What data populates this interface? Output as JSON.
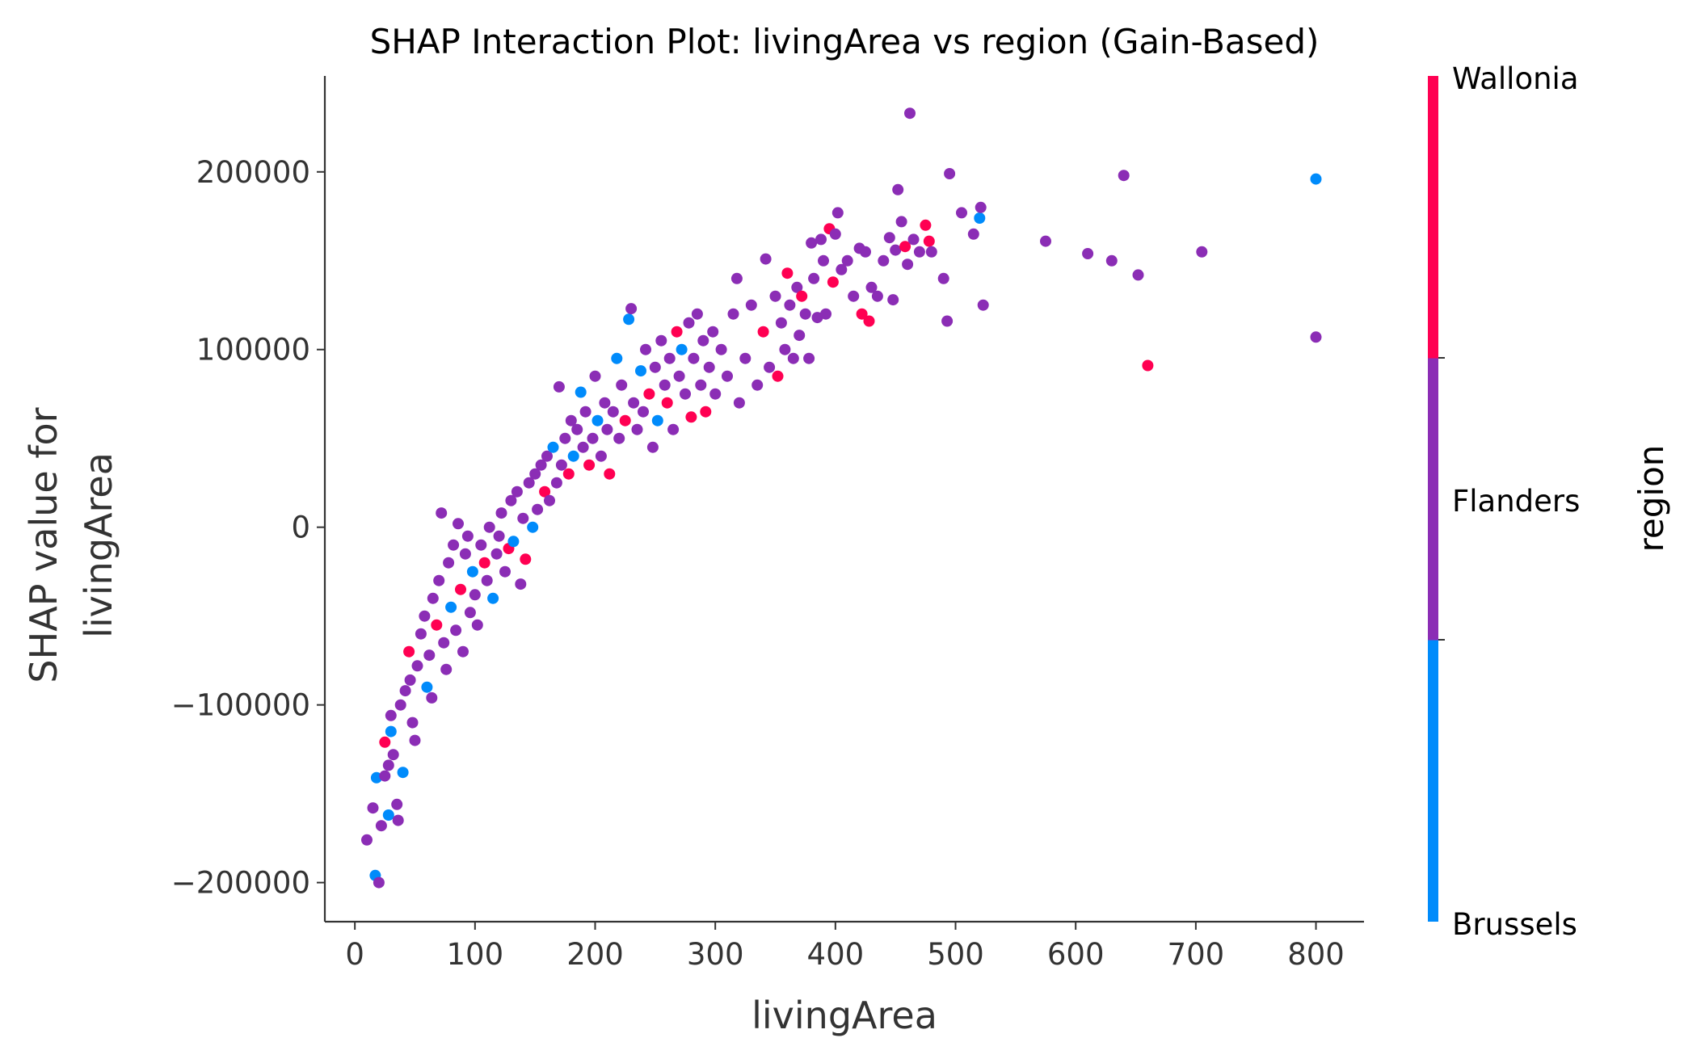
{
  "chart_data": {
    "type": "scatter",
    "title": "SHAP Interaction Plot: livingArea vs region (Gain-Based)",
    "xlabel": "livingArea",
    "ylabel_lines": [
      "SHAP value for",
      "livingArea"
    ],
    "xlim": [
      -25,
      840
    ],
    "ylim": [
      -222000,
      254000
    ],
    "xticks": [
      0,
      100,
      200,
      300,
      400,
      500,
      600,
      700,
      800
    ],
    "yticks": [
      -200000,
      -100000,
      0,
      100000,
      200000
    ],
    "ytick_labels": [
      "−200000",
      "−100000",
      "0",
      "100000",
      "200000"
    ],
    "grid": false,
    "colorbar": {
      "title": "region",
      "labels": [
        "Wallonia",
        "Flanders",
        "Brussels"
      ],
      "colors": [
        "#ff0052",
        "#8b2db5",
        "#008bfb"
      ]
    },
    "series_colors": {
      "Brussels": "#008bfb",
      "Flanders": "#8b2db5",
      "Wallonia": "#ff0052"
    },
    "points": [
      [
        10,
        -176000,
        "Flanders"
      ],
      [
        15,
        -158000,
        "Flanders"
      ],
      [
        17,
        -196000,
        "Brussels"
      ],
      [
        20,
        -200000,
        "Flanders"
      ],
      [
        18,
        -141000,
        "Brussels"
      ],
      [
        22,
        -168000,
        "Flanders"
      ],
      [
        25,
        -140000,
        "Flanders"
      ],
      [
        28,
        -162000,
        "Brussels"
      ],
      [
        25,
        -121000,
        "Wallonia"
      ],
      [
        30,
        -115000,
        "Brussels"
      ],
      [
        32,
        -128000,
        "Flanders"
      ],
      [
        35,
        -156000,
        "Flanders"
      ],
      [
        36,
        -165000,
        "Flanders"
      ],
      [
        30,
        -106000,
        "Flanders"
      ],
      [
        28,
        -134000,
        "Flanders"
      ],
      [
        40,
        -138000,
        "Brussels"
      ],
      [
        38,
        -100000,
        "Flanders"
      ],
      [
        42,
        -92000,
        "Flanders"
      ],
      [
        45,
        -70000,
        "Wallonia"
      ],
      [
        46,
        -86000,
        "Flanders"
      ],
      [
        48,
        -110000,
        "Flanders"
      ],
      [
        50,
        -120000,
        "Flanders"
      ],
      [
        52,
        -78000,
        "Flanders"
      ],
      [
        55,
        -60000,
        "Flanders"
      ],
      [
        58,
        -50000,
        "Flanders"
      ],
      [
        60,
        -90000,
        "Brussels"
      ],
      [
        62,
        -72000,
        "Flanders"
      ],
      [
        64,
        -96000,
        "Flanders"
      ],
      [
        65,
        -40000,
        "Flanders"
      ],
      [
        68,
        -55000,
        "Wallonia"
      ],
      [
        70,
        -30000,
        "Flanders"
      ],
      [
        72,
        8000,
        "Flanders"
      ],
      [
        74,
        -65000,
        "Flanders"
      ],
      [
        76,
        -80000,
        "Flanders"
      ],
      [
        78,
        -20000,
        "Flanders"
      ],
      [
        80,
        -45000,
        "Brussels"
      ],
      [
        82,
        -10000,
        "Flanders"
      ],
      [
        84,
        -58000,
        "Flanders"
      ],
      [
        86,
        2000,
        "Flanders"
      ],
      [
        88,
        -35000,
        "Wallonia"
      ],
      [
        90,
        -70000,
        "Flanders"
      ],
      [
        92,
        -15000,
        "Flanders"
      ],
      [
        94,
        -5000,
        "Flanders"
      ],
      [
        96,
        -48000,
        "Flanders"
      ],
      [
        98,
        -25000,
        "Brussels"
      ],
      [
        100,
        -38000,
        "Flanders"
      ],
      [
        102,
        -55000,
        "Flanders"
      ],
      [
        105,
        -10000,
        "Flanders"
      ],
      [
        108,
        -20000,
        "Wallonia"
      ],
      [
        110,
        -30000,
        "Flanders"
      ],
      [
        112,
        0,
        "Flanders"
      ],
      [
        115,
        -40000,
        "Brussels"
      ],
      [
        118,
        -15000,
        "Flanders"
      ],
      [
        120,
        -5000,
        "Flanders"
      ],
      [
        122,
        8000,
        "Flanders"
      ],
      [
        125,
        -25000,
        "Flanders"
      ],
      [
        128,
        -12000,
        "Wallonia"
      ],
      [
        130,
        15000,
        "Flanders"
      ],
      [
        132,
        -8000,
        "Brussels"
      ],
      [
        135,
        20000,
        "Flanders"
      ],
      [
        138,
        -32000,
        "Flanders"
      ],
      [
        140,
        5000,
        "Flanders"
      ],
      [
        142,
        -18000,
        "Wallonia"
      ],
      [
        145,
        25000,
        "Flanders"
      ],
      [
        148,
        0,
        "Brussels"
      ],
      [
        150,
        30000,
        "Flanders"
      ],
      [
        152,
        10000,
        "Flanders"
      ],
      [
        155,
        35000,
        "Flanders"
      ],
      [
        158,
        20000,
        "Wallonia"
      ],
      [
        160,
        40000,
        "Flanders"
      ],
      [
        162,
        15000,
        "Flanders"
      ],
      [
        165,
        45000,
        "Brussels"
      ],
      [
        168,
        25000,
        "Flanders"
      ],
      [
        170,
        79000,
        "Flanders"
      ],
      [
        172,
        35000,
        "Flanders"
      ],
      [
        175,
        50000,
        "Flanders"
      ],
      [
        178,
        30000,
        "Wallonia"
      ],
      [
        180,
        60000,
        "Flanders"
      ],
      [
        182,
        40000,
        "Brussels"
      ],
      [
        185,
        55000,
        "Flanders"
      ],
      [
        188,
        76000,
        "Brussels"
      ],
      [
        190,
        45000,
        "Flanders"
      ],
      [
        192,
        65000,
        "Flanders"
      ],
      [
        195,
        35000,
        "Wallonia"
      ],
      [
        198,
        50000,
        "Flanders"
      ],
      [
        200,
        85000,
        "Flanders"
      ],
      [
        202,
        60000,
        "Brussels"
      ],
      [
        205,
        40000,
        "Flanders"
      ],
      [
        208,
        70000,
        "Flanders"
      ],
      [
        210,
        55000,
        "Flanders"
      ],
      [
        212,
        30000,
        "Wallonia"
      ],
      [
        215,
        65000,
        "Flanders"
      ],
      [
        218,
        95000,
        "Brussels"
      ],
      [
        220,
        50000,
        "Flanders"
      ],
      [
        222,
        80000,
        "Flanders"
      ],
      [
        225,
        60000,
        "Wallonia"
      ],
      [
        228,
        117000,
        "Brussels"
      ],
      [
        230,
        123000,
        "Flanders"
      ],
      [
        232,
        70000,
        "Flanders"
      ],
      [
        235,
        55000,
        "Flanders"
      ],
      [
        238,
        88000,
        "Brussels"
      ],
      [
        240,
        65000,
        "Flanders"
      ],
      [
        242,
        100000,
        "Flanders"
      ],
      [
        245,
        75000,
        "Wallonia"
      ],
      [
        248,
        45000,
        "Flanders"
      ],
      [
        250,
        90000,
        "Flanders"
      ],
      [
        252,
        60000,
        "Brussels"
      ],
      [
        255,
        105000,
        "Flanders"
      ],
      [
        258,
        80000,
        "Flanders"
      ],
      [
        260,
        70000,
        "Wallonia"
      ],
      [
        262,
        95000,
        "Flanders"
      ],
      [
        265,
        55000,
        "Flanders"
      ],
      [
        268,
        110000,
        "Wallonia"
      ],
      [
        270,
        85000,
        "Flanders"
      ],
      [
        272,
        100000,
        "Brussels"
      ],
      [
        275,
        75000,
        "Flanders"
      ],
      [
        278,
        115000,
        "Flanders"
      ],
      [
        280,
        62000,
        "Wallonia"
      ],
      [
        282,
        95000,
        "Flanders"
      ],
      [
        285,
        120000,
        "Flanders"
      ],
      [
        288,
        80000,
        "Flanders"
      ],
      [
        290,
        105000,
        "Flanders"
      ],
      [
        292,
        65000,
        "Wallonia"
      ],
      [
        295,
        90000,
        "Flanders"
      ],
      [
        298,
        110000,
        "Flanders"
      ],
      [
        300,
        75000,
        "Flanders"
      ],
      [
        305,
        100000,
        "Flanders"
      ],
      [
        310,
        85000,
        "Flanders"
      ],
      [
        315,
        120000,
        "Flanders"
      ],
      [
        318,
        140000,
        "Flanders"
      ],
      [
        320,
        70000,
        "Flanders"
      ],
      [
        325,
        95000,
        "Flanders"
      ],
      [
        330,
        125000,
        "Flanders"
      ],
      [
        335,
        80000,
        "Flanders"
      ],
      [
        340,
        110000,
        "Wallonia"
      ],
      [
        342,
        151000,
        "Flanders"
      ],
      [
        345,
        90000,
        "Flanders"
      ],
      [
        350,
        130000,
        "Flanders"
      ],
      [
        352,
        85000,
        "Wallonia"
      ],
      [
        355,
        115000,
        "Flanders"
      ],
      [
        358,
        100000,
        "Flanders"
      ],
      [
        360,
        143000,
        "Wallonia"
      ],
      [
        362,
        125000,
        "Flanders"
      ],
      [
        365,
        95000,
        "Flanders"
      ],
      [
        368,
        135000,
        "Flanders"
      ],
      [
        370,
        108000,
        "Flanders"
      ],
      [
        372,
        130000,
        "Wallonia"
      ],
      [
        375,
        120000,
        "Flanders"
      ],
      [
        378,
        95000,
        "Flanders"
      ],
      [
        380,
        160000,
        "Flanders"
      ],
      [
        382,
        140000,
        "Flanders"
      ],
      [
        385,
        118000,
        "Flanders"
      ],
      [
        388,
        162000,
        "Flanders"
      ],
      [
        390,
        150000,
        "Flanders"
      ],
      [
        392,
        120000,
        "Flanders"
      ],
      [
        395,
        168000,
        "Wallonia"
      ],
      [
        398,
        138000,
        "Wallonia"
      ],
      [
        400,
        165000,
        "Flanders"
      ],
      [
        402,
        177000,
        "Flanders"
      ],
      [
        405,
        145000,
        "Flanders"
      ],
      [
        410,
        150000,
        "Flanders"
      ],
      [
        415,
        130000,
        "Flanders"
      ],
      [
        420,
        157000,
        "Flanders"
      ],
      [
        422,
        120000,
        "Wallonia"
      ],
      [
        425,
        155000,
        "Flanders"
      ],
      [
        428,
        116000,
        "Wallonia"
      ],
      [
        430,
        135000,
        "Flanders"
      ],
      [
        435,
        130000,
        "Flanders"
      ],
      [
        440,
        150000,
        "Flanders"
      ],
      [
        445,
        163000,
        "Flanders"
      ],
      [
        448,
        128000,
        "Flanders"
      ],
      [
        450,
        156000,
        "Flanders"
      ],
      [
        452,
        190000,
        "Flanders"
      ],
      [
        455,
        172000,
        "Flanders"
      ],
      [
        458,
        158000,
        "Wallonia"
      ],
      [
        460,
        148000,
        "Flanders"
      ],
      [
        462,
        233000,
        "Flanders"
      ],
      [
        465,
        162000,
        "Flanders"
      ],
      [
        470,
        155000,
        "Flanders"
      ],
      [
        475,
        170000,
        "Wallonia"
      ],
      [
        478,
        161000,
        "Wallonia"
      ],
      [
        480,
        155000,
        "Flanders"
      ],
      [
        490,
        140000,
        "Flanders"
      ],
      [
        493,
        116000,
        "Flanders"
      ],
      [
        495,
        199000,
        "Flanders"
      ],
      [
        505,
        177000,
        "Flanders"
      ],
      [
        515,
        165000,
        "Flanders"
      ],
      [
        520,
        174000,
        "Brussels"
      ],
      [
        521,
        180000,
        "Flanders"
      ],
      [
        523,
        125000,
        "Flanders"
      ],
      [
        575,
        161000,
        "Flanders"
      ],
      [
        610,
        154000,
        "Flanders"
      ],
      [
        630,
        150000,
        "Flanders"
      ],
      [
        640,
        198000,
        "Flanders"
      ],
      [
        652,
        142000,
        "Flanders"
      ],
      [
        660,
        91000,
        "Wallonia"
      ],
      [
        705,
        155000,
        "Flanders"
      ],
      [
        800,
        196000,
        "Brussels"
      ],
      [
        800,
        107000,
        "Flanders"
      ]
    ]
  }
}
